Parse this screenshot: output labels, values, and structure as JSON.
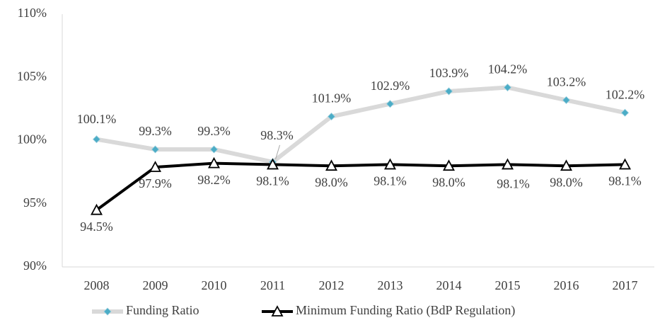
{
  "chart_data": {
    "type": "line",
    "categories": [
      "2008",
      "2009",
      "2010",
      "2011",
      "2012",
      "2013",
      "2014",
      "2015",
      "2016",
      "2017"
    ],
    "series": [
      {
        "name": "Funding Ratio",
        "color": "#d9d9d9",
        "marker": "diamond",
        "marker_color": "#4bacc6",
        "values": [
          100.1,
          99.3,
          99.3,
          98.3,
          101.9,
          102.9,
          103.9,
          104.2,
          103.2,
          102.2
        ],
        "value_labels": [
          "100.1%",
          "99.3%",
          "99.3%",
          "98.3%",
          "101.9%",
          "102.9%",
          "103.9%",
          "104.2%",
          "103.2%",
          "102.2%"
        ]
      },
      {
        "name": "Minimum Funding Ratio (BdP Regulation)",
        "color": "#000000",
        "marker": "triangle",
        "marker_color": "#ffffff",
        "values": [
          94.5,
          97.9,
          98.2,
          98.1,
          98.0,
          98.1,
          98.0,
          98.1,
          98.0,
          98.1
        ],
        "value_labels": [
          "94.5%",
          "97.9%",
          "98.2%",
          "98.1%",
          "98.0%",
          "98.1%",
          "98.0%",
          "98.1%",
          "98.0%",
          "98.1%"
        ]
      }
    ],
    "ylim": [
      90,
      110
    ],
    "yticks": [
      {
        "value": 90,
        "label": "90%"
      },
      {
        "value": 95,
        "label": "95%"
      },
      {
        "value": 100,
        "label": "100%"
      },
      {
        "value": 105,
        "label": "105%"
      },
      {
        "value": 110,
        "label": "110%"
      }
    ],
    "grid": false,
    "legend": "bottom"
  }
}
